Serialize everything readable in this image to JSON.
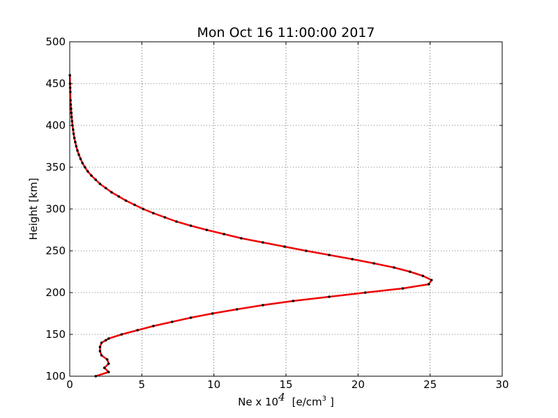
{
  "chart_data": {
    "type": "line",
    "title": "Mon Oct 16 11:00:00 2017",
    "xlabel_prefix": "Ne x 10",
    "xlabel_exponent": "4",
    "xlabel_units": "[e/cm",
    "xlabel_units_exponent": "3",
    "xlabel_units_close": "]",
    "ylabel": "Height [km]",
    "xlim": [
      0,
      30
    ],
    "ylim": [
      100,
      500
    ],
    "xticks": [
      0,
      5,
      10,
      15,
      20,
      25,
      30
    ],
    "yticks": [
      100,
      150,
      200,
      250,
      300,
      350,
      400,
      450,
      500
    ],
    "grid": true,
    "line_color": "#ee0000",
    "marker_color": "#000000",
    "series": [
      {
        "x": [
          1.8,
          2.7,
          2.4,
          2.7,
          2.6,
          2.2,
          2.1,
          2.1,
          2.2,
          2.5,
          2.7,
          3.6,
          4.7,
          5.8,
          7.1,
          8.4,
          9.9,
          11.6,
          13.4,
          15.5,
          18.0,
          20.5,
          23.1,
          24.9,
          25.1,
          24.5,
          23.6,
          22.5,
          21.1,
          19.6,
          18.0,
          16.4,
          14.9,
          13.4,
          11.9,
          10.7,
          9.5,
          8.4,
          7.4,
          6.6,
          5.8,
          5.1,
          4.5,
          3.9,
          3.4,
          2.9,
          2.5,
          2.1,
          1.8,
          1.5,
          1.25,
          1.05,
          0.88,
          0.75,
          0.63,
          0.53,
          0.45,
          0.38,
          0.32,
          0.27,
          0.23,
          0.19,
          0.16,
          0.13,
          0.11,
          0.09,
          0.07,
          0.055,
          0.04,
          0.03,
          0.02,
          0.01
        ],
        "y": [
          100,
          105,
          110,
          115,
          120,
          125,
          130,
          135,
          140,
          143,
          145,
          150,
          155,
          160,
          165,
          170,
          175,
          180,
          185,
          190,
          195,
          200,
          205,
          210,
          215,
          220,
          225,
          230,
          235,
          240,
          245,
          250,
          255,
          260,
          265,
          270,
          275,
          280,
          285,
          290,
          295,
          300,
          305,
          310,
          315,
          320,
          325,
          330,
          335,
          340,
          345,
          350,
          355,
          360,
          365,
          370,
          375,
          380,
          385,
          390,
          395,
          400,
          405,
          410,
          415,
          420,
          425,
          430,
          440,
          445,
          450,
          460
        ]
      }
    ]
  }
}
